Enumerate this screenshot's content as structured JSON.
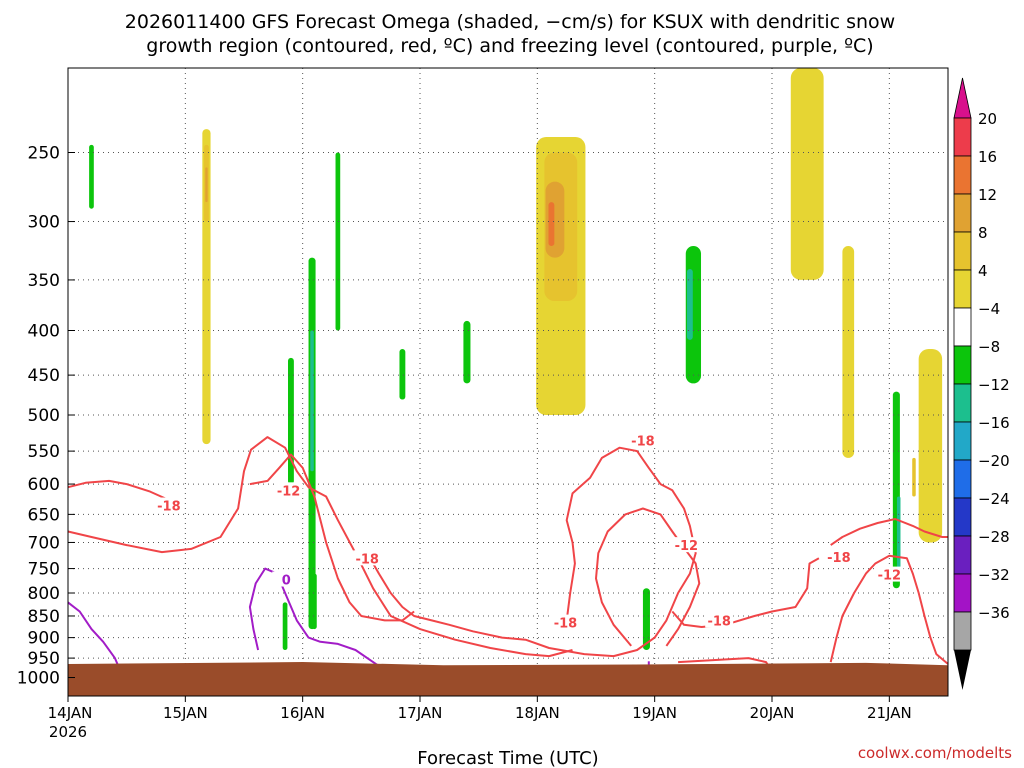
{
  "chart_data": {
    "type": "heatmap",
    "title_lines": [
      "2026011400 GFS Forecast Omega (shaded, −cm/s) for KSUX with dendritic snow",
      "growth region (contoured, red, ºC) and freezing level (contoured, purple, ºC)"
    ],
    "xlabel": "Forecast Time (UTC)",
    "ylabel": "",
    "credit": "coolwx.com/modelts",
    "x_ticks": [
      "14JAN",
      "15JAN",
      "16JAN",
      "17JAN",
      "18JAN",
      "19JAN",
      "20JAN",
      "21JAN"
    ],
    "x_year_label": "2026",
    "xlim_days": [
      0,
      7.5
    ],
    "y_scale": "log",
    "ylim": [
      1050,
      200
    ],
    "y_ticks": [
      250,
      300,
      350,
      400,
      450,
      500,
      550,
      600,
      650,
      700,
      750,
      800,
      850,
      900,
      950,
      1000
    ],
    "grid": true,
    "colorbar": {
      "labels": [
        "20",
        "16",
        "12",
        "8",
        "4",
        "−4",
        "−8",
        "−12",
        "−16",
        "−20",
        "−24",
        "−28",
        "−32",
        "−36"
      ],
      "colors": [
        "#ed3c4b",
        "#ea7431",
        "#e0a232",
        "#e6c32e",
        "#e6d533",
        "#ffffff",
        "#0cc50c",
        "#1cbf8e",
        "#22a8c8",
        "#1f6de8",
        "#2438c8",
        "#6a1fbf",
        "#a313c6",
        "#a6a6a6"
      ],
      "top_arrow_color": "#d8108c",
      "bottom_arrow_color": "#000000"
    },
    "ground_color": "#9a4c2a",
    "contours": {
      "dgz_color": "#f04548",
      "freezing_color": "#a21cc7",
      "labels": [
        {
          "text": "-18",
          "t": 0.86,
          "p": 635
        },
        {
          "text": "-12",
          "t": 1.88,
          "p": 610
        },
        {
          "text": "-18",
          "t": 2.55,
          "p": 730
        },
        {
          "text": "-18",
          "t": 4.24,
          "p": 865
        },
        {
          "text": "-18",
          "t": 4.9,
          "p": 535
        },
        {
          "text": "-12",
          "t": 5.27,
          "p": 705
        },
        {
          "text": "-18",
          "t": 5.55,
          "p": 860
        },
        {
          "text": "-18",
          "t": 6.57,
          "p": 727
        },
        {
          "text": "-12",
          "t": 7.0,
          "p": 762
        },
        {
          "text": "0",
          "t": 1.86,
          "p": 772
        }
      ]
    },
    "omega_regions": [
      {
        "cat": "pos4",
        "t": 1.18,
        "p1": 235,
        "p2": 540,
        "w": 0.07
      },
      {
        "cat": "pos8",
        "t": 1.18,
        "p1": 245,
        "p2": 300,
        "w": 0.04
      },
      {
        "cat": "pos12",
        "t": 1.18,
        "p1": 260,
        "p2": 285,
        "w": 0.02
      },
      {
        "cat": "pos4",
        "t": 4.2,
        "p1": 240,
        "p2": 500,
        "w": 0.42
      },
      {
        "cat": "pos8",
        "t": 4.2,
        "p1": 250,
        "p2": 370,
        "w": 0.28
      },
      {
        "cat": "pos12",
        "t": 4.15,
        "p1": 270,
        "p2": 330,
        "w": 0.16
      },
      {
        "cat": "pos16",
        "t": 4.12,
        "p1": 285,
        "p2": 320,
        "w": 0.05
      },
      {
        "cat": "pos4",
        "t": 6.3,
        "p1": 200,
        "p2": 350,
        "w": 0.28
      },
      {
        "cat": "pos4",
        "t": 6.65,
        "p1": 320,
        "p2": 560,
        "w": 0.1
      },
      {
        "cat": "pos4",
        "t": 7.35,
        "p1": 420,
        "p2": 700,
        "w": 0.2
      },
      {
        "cat": "pos8",
        "t": 7.21,
        "p1": 560,
        "p2": 620,
        "w": 0.03
      },
      {
        "cat": "neg4",
        "t": 0.2,
        "p1": 245,
        "p2": 290,
        "w": 0.04
      },
      {
        "cat": "neg4",
        "t": 2.08,
        "p1": 330,
        "p2": 880,
        "w": 0.06
      },
      {
        "cat": "neg8",
        "t": 2.08,
        "p1": 400,
        "p2": 580,
        "w": 0.03
      },
      {
        "cat": "neg4",
        "t": 1.9,
        "p1": 430,
        "p2": 600,
        "w": 0.05
      },
      {
        "cat": "neg4",
        "t": 2.3,
        "p1": 250,
        "p2": 400,
        "w": 0.04
      },
      {
        "cat": "neg4",
        "t": 3.4,
        "p1": 390,
        "p2": 460,
        "w": 0.06
      },
      {
        "cat": "neg4",
        "t": 2.85,
        "p1": 420,
        "p2": 480,
        "w": 0.05
      },
      {
        "cat": "neg4",
        "t": 5.33,
        "p1": 320,
        "p2": 460,
        "w": 0.13
      },
      {
        "cat": "neg8",
        "t": 5.3,
        "p1": 340,
        "p2": 410,
        "w": 0.05
      },
      {
        "cat": "neg4",
        "t": 4.93,
        "p1": 790,
        "p2": 930,
        "w": 0.06
      },
      {
        "cat": "neg4",
        "t": 7.06,
        "p1": 470,
        "p2": 790,
        "w": 0.06
      },
      {
        "cat": "neg8",
        "t": 7.08,
        "p1": 620,
        "p2": 760,
        "w": 0.03
      },
      {
        "cat": "neg4",
        "t": 1.85,
        "p1": 820,
        "p2": 930,
        "w": 0.04
      },
      {
        "cat": "neg4",
        "t": 2.1,
        "p1": 760,
        "p2": 880,
        "w": 0.04
      }
    ]
  }
}
